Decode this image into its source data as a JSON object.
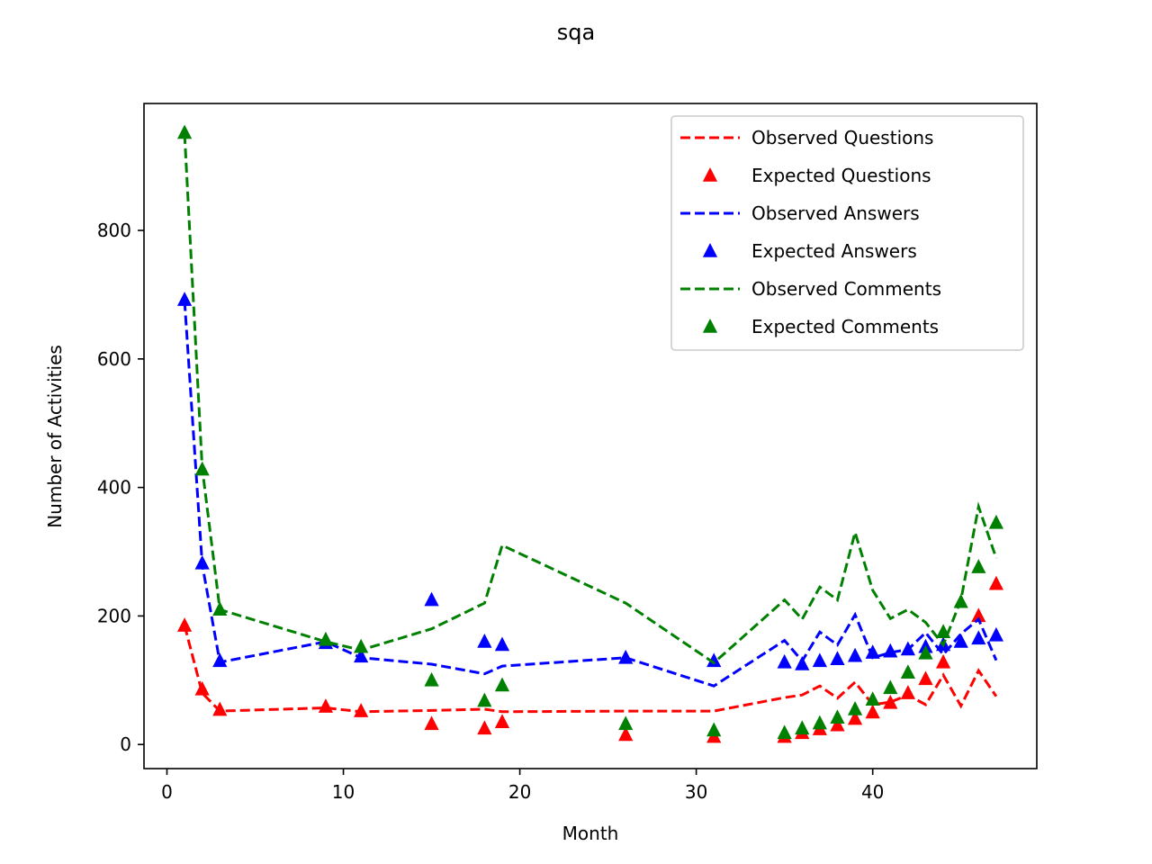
{
  "chart_data": {
    "type": "line",
    "title": "sqa",
    "xlabel": "Month",
    "ylabel": "Number of Activities",
    "xlim": [
      -1.3,
      49.3
    ],
    "ylim": [
      -37.5,
      997.5
    ],
    "xticks": [
      0,
      10,
      20,
      30,
      40
    ],
    "yticks": [
      0,
      200,
      400,
      600,
      800
    ],
    "grid": false,
    "legend_position": "upper right",
    "series": [
      {
        "name": "Observed Questions",
        "style": "dashed-line",
        "color": "#ff0000",
        "x": [
          1,
          2,
          3,
          9,
          11,
          15,
          18,
          19,
          26,
          31,
          35,
          36,
          37,
          38,
          39,
          40,
          41,
          42,
          43,
          44,
          45,
          46,
          47
        ],
        "y": [
          185,
          80,
          52,
          57,
          51,
          53,
          55,
          51,
          52,
          52,
          73,
          77,
          91,
          72,
          97,
          62,
          66,
          77,
          62,
          108,
          60,
          115,
          75
        ]
      },
      {
        "name": "Expected Questions",
        "style": "triangle-marker",
        "color": "#ff0000",
        "x": [
          1,
          2,
          3,
          9,
          11,
          15,
          18,
          19,
          26,
          31,
          35,
          36,
          37,
          38,
          39,
          40,
          41,
          42,
          43,
          44,
          46,
          47
        ],
        "y": [
          185,
          86,
          54,
          59,
          52,
          32,
          25,
          35,
          15,
          12,
          12,
          18,
          24,
          30,
          40,
          50,
          65,
          80,
          102,
          128,
          200,
          250
        ]
      },
      {
        "name": "Observed Answers",
        "style": "dashed-line",
        "color": "#0000ff",
        "x": [
          1,
          2,
          3,
          9,
          11,
          15,
          18,
          19,
          26,
          31,
          35,
          36,
          37,
          38,
          39,
          40,
          41,
          42,
          43,
          44,
          45,
          46,
          47
        ],
        "y": [
          690,
          280,
          128,
          160,
          135,
          125,
          110,
          122,
          135,
          91,
          162,
          130,
          175,
          155,
          202,
          135,
          143,
          148,
          174,
          140,
          172,
          195,
          131
        ]
      },
      {
        "name": "Expected Answers",
        "style": "triangle-marker",
        "color": "#0000ff",
        "x": [
          1,
          2,
          3,
          9,
          11,
          15,
          18,
          19,
          26,
          31,
          35,
          36,
          37,
          38,
          39,
          40,
          41,
          42,
          43,
          44,
          45,
          46,
          47
        ],
        "y": [
          692,
          282,
          130,
          158,
          137,
          225,
          160,
          155,
          135,
          130,
          128,
          125,
          130,
          133,
          138,
          143,
          145,
          148,
          152,
          155,
          160,
          165,
          170
        ]
      },
      {
        "name": "Observed Comments",
        "style": "dashed-line",
        "color": "#008000",
        "x": [
          1,
          2,
          3,
          9,
          11,
          15,
          18,
          19,
          26,
          31,
          35,
          36,
          37,
          38,
          39,
          40,
          41,
          42,
          43,
          44,
          45,
          46,
          47
        ],
        "y": [
          950,
          430,
          210,
          160,
          147,
          180,
          220,
          310,
          220,
          127,
          225,
          195,
          245,
          225,
          330,
          240,
          196,
          210,
          190,
          155,
          225,
          370,
          290
        ]
      },
      {
        "name": "Expected Comments",
        "style": "triangle-marker",
        "color": "#008000",
        "x": [
          1,
          2,
          3,
          9,
          11,
          15,
          18,
          19,
          26,
          31,
          35,
          36,
          37,
          38,
          39,
          40,
          41,
          42,
          43,
          44,
          45,
          46,
          47
        ],
        "y": [
          952,
          428,
          210,
          163,
          152,
          100,
          68,
          92,
          32,
          22,
          18,
          25,
          33,
          42,
          55,
          70,
          88,
          112,
          142,
          175,
          222,
          276,
          345
        ]
      }
    ]
  }
}
